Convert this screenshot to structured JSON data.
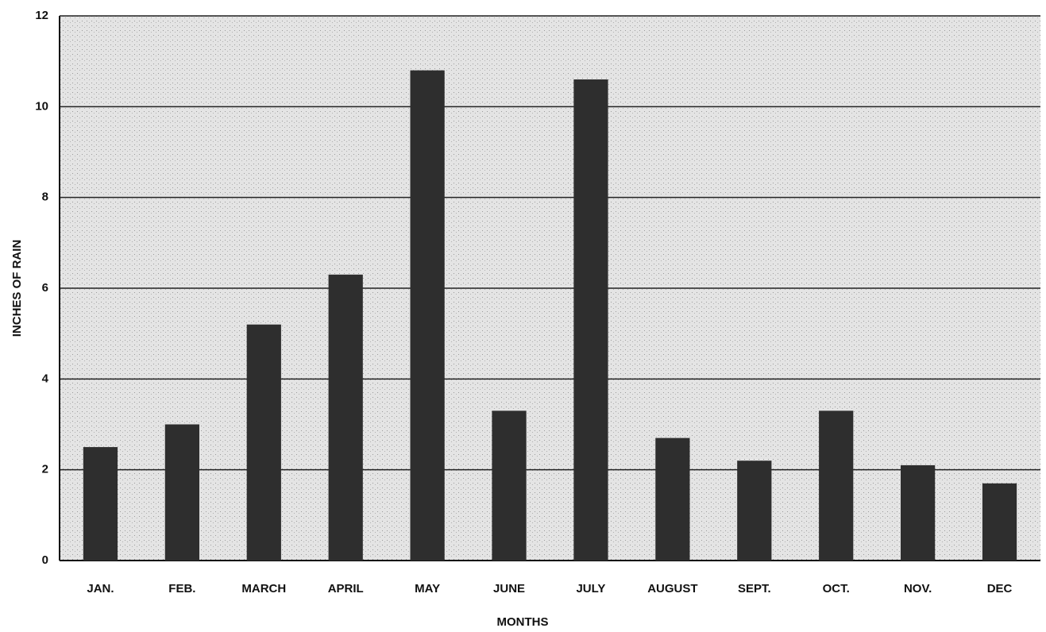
{
  "chart_data": {
    "type": "bar",
    "x_label": "MONTHS",
    "y_label": "INCHES OF RAIN",
    "categories": [
      "JAN.",
      "FEB.",
      "MARCH",
      "APRIL",
      "MAY",
      "JUNE",
      "JULY",
      "AUGUST",
      "SEPT.",
      "OCT.",
      "NOV.",
      "DEC"
    ],
    "values": [
      2.5,
      3.0,
      5.2,
      6.3,
      10.8,
      3.3,
      10.6,
      2.7,
      2.2,
      3.3,
      2.1,
      1.7
    ],
    "color": "#2e2e2e",
    "ylim": [
      0,
      12
    ],
    "yticks": [
      0,
      2,
      4,
      6,
      8,
      10,
      12
    ],
    "grid": true
  }
}
